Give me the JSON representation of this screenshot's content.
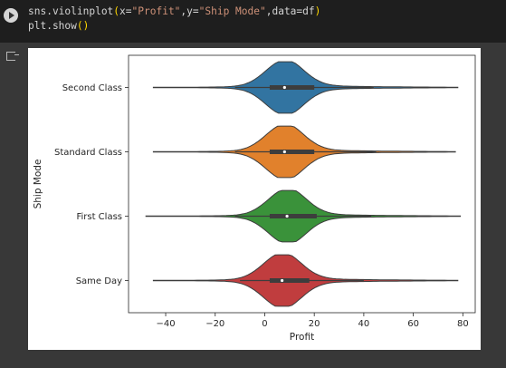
{
  "code": {
    "line1_fn": "sns.violinplot",
    "line1_open": "(",
    "line1_arg1": "x=",
    "line1_str1": "\"Profit\"",
    "line1_arg2": ",y=",
    "line1_str2": "\"Ship Mode\"",
    "line1_arg3": ",data=df",
    "line1_close": ")",
    "line2_fn": "plt.show",
    "line2_parens": "()"
  },
  "icons": {
    "run": "play-circle-icon",
    "output": "output-arrow-icon"
  },
  "chart_data": {
    "type": "violin",
    "xlabel": "Profit",
    "ylabel": "Ship Mode",
    "xlim": [
      -55,
      85
    ],
    "xticks": [
      -40,
      -20,
      0,
      20,
      40,
      60,
      80
    ],
    "xtick_labels": [
      "−40",
      "−20",
      "0",
      "20",
      "40",
      "60",
      "80"
    ],
    "categories": [
      "Second Class",
      "Standard Class",
      "First Class",
      "Same Day"
    ],
    "colors": [
      "#3274a1",
      "#e1812c",
      "#3a923a",
      "#c03d3e"
    ],
    "violins": [
      {
        "category": "Second Class",
        "min": -45,
        "max": 78,
        "q1": 2,
        "median": 8,
        "q3": 20,
        "whisker_low": -12,
        "whisker_high": 44
      },
      {
        "category": "Standard Class",
        "min": -45,
        "max": 77,
        "q1": 2,
        "median": 8,
        "q3": 20,
        "whisker_low": -12,
        "whisker_high": 45
      },
      {
        "category": "First Class",
        "min": -48,
        "max": 79,
        "q1": 2,
        "median": 9,
        "q3": 21,
        "whisker_low": -12,
        "whisker_high": 43
      },
      {
        "category": "Same Day",
        "min": -45,
        "max": 78,
        "q1": 2,
        "median": 7,
        "q3": 18,
        "whisker_low": -10,
        "whisker_high": 40
      }
    ]
  }
}
